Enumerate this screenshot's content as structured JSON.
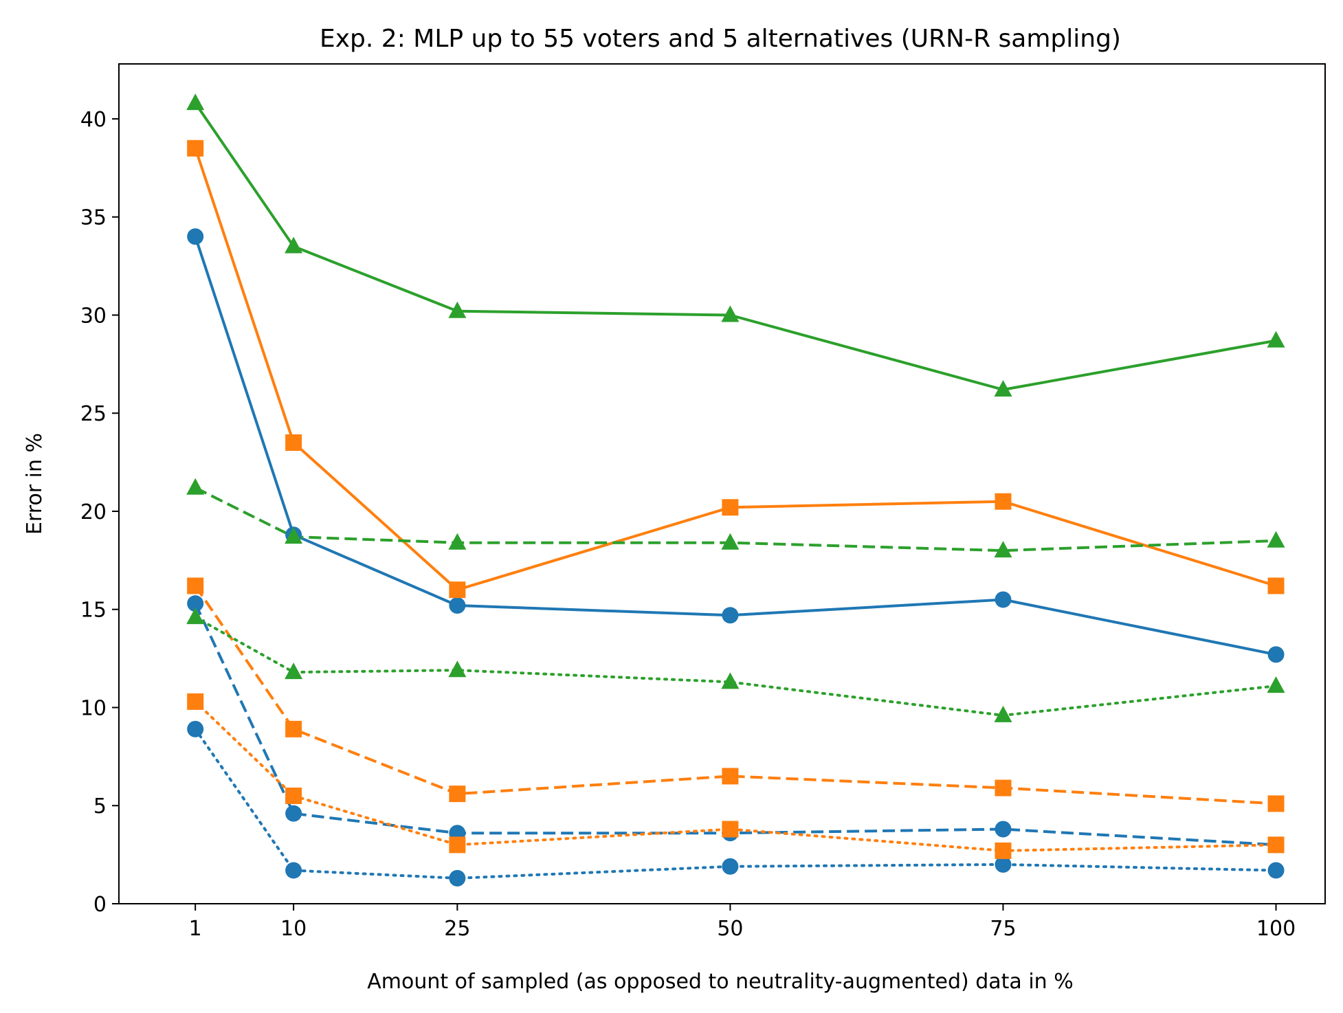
{
  "chart_data": {
    "type": "line",
    "title": "Exp. 2: MLP up to 55 voters and 5 alternatives (URN-R sampling)",
    "xlabel": "Amount of sampled (as opposed to neutrality-augmented) data in %",
    "ylabel": "Error in %",
    "x": [
      1,
      10,
      25,
      50,
      75,
      100
    ],
    "xticks": [
      "1",
      "10",
      "25",
      "50",
      "75",
      "100"
    ],
    "xlim": [
      -6,
      104.5
    ],
    "yticks": [
      "0",
      "5",
      "10",
      "15",
      "20",
      "25",
      "30",
      "35",
      "40"
    ],
    "ylim": [
      0,
      42.8
    ],
    "grid": false,
    "series": [
      {
        "name": "blue-solid",
        "color": "#1f77b4",
        "linestyle": "solid",
        "marker": "circle",
        "values": [
          34.0,
          18.8,
          15.2,
          14.7,
          15.5,
          12.7
        ]
      },
      {
        "name": "orange-solid",
        "color": "#ff7f0e",
        "linestyle": "solid",
        "marker": "square",
        "values": [
          38.5,
          23.5,
          16.0,
          20.2,
          20.5,
          16.2
        ]
      },
      {
        "name": "green-solid",
        "color": "#2ca02c",
        "linestyle": "solid",
        "marker": "triangle",
        "values": [
          40.8,
          33.5,
          30.2,
          30.0,
          26.2,
          28.7
        ]
      },
      {
        "name": "blue-dashed",
        "color": "#1f77b4",
        "linestyle": "dashed",
        "marker": "circle",
        "values": [
          15.3,
          4.6,
          3.6,
          3.6,
          3.8,
          3.0
        ]
      },
      {
        "name": "orange-dashed",
        "color": "#ff7f0e",
        "linestyle": "dashed",
        "marker": "square",
        "values": [
          16.2,
          8.9,
          5.6,
          6.5,
          5.9,
          5.1
        ]
      },
      {
        "name": "green-dashed",
        "color": "#2ca02c",
        "linestyle": "dashed",
        "marker": "triangle",
        "values": [
          21.2,
          18.7,
          18.4,
          18.4,
          18.0,
          18.5
        ]
      },
      {
        "name": "blue-dotted",
        "color": "#1f77b4",
        "linestyle": "dotted",
        "marker": "circle",
        "values": [
          8.9,
          1.7,
          1.3,
          1.9,
          2.0,
          1.7
        ]
      },
      {
        "name": "orange-dotted",
        "color": "#ff7f0e",
        "linestyle": "dotted",
        "marker": "square",
        "values": [
          10.3,
          5.5,
          3.0,
          3.8,
          2.7,
          3.0
        ]
      },
      {
        "name": "green-dotted",
        "color": "#2ca02c",
        "linestyle": "dotted",
        "marker": "triangle",
        "values": [
          14.6,
          11.8,
          11.9,
          11.3,
          9.6,
          11.1
        ]
      }
    ]
  }
}
